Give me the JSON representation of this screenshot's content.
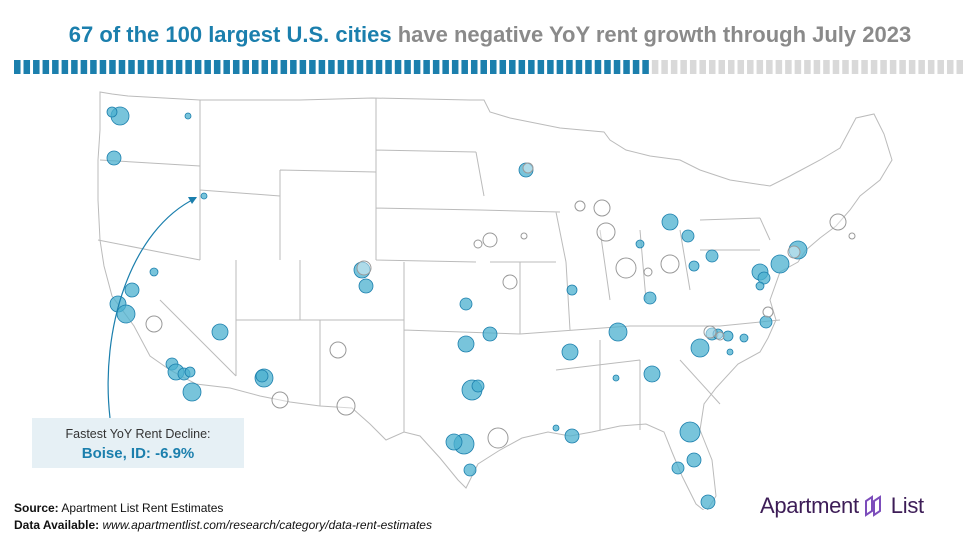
{
  "title": {
    "highlight": "67 of the 100 largest U.S. cities",
    "rest": "have negative YoY rent growth through July 2023"
  },
  "progress": {
    "filled": 67,
    "total": 100,
    "filled_color": "#1b7fad",
    "empty_color": "#d9d9d9"
  },
  "callout": {
    "line1": "Fastest YoY Rent Decline:",
    "line2": "Boise, ID: -6.9%"
  },
  "source": {
    "label": "Source:",
    "text": "Apartment List Rent Estimates",
    "data_label": "Data Available:",
    "data_url": "www.apartmentlist.com/research/category/data-rent-estimates"
  },
  "logo": {
    "left": "Apartment",
    "right": "List"
  },
  "colors": {
    "negative": "#4bb0cf",
    "negative_stroke": "#1b7fad",
    "positive_stroke": "#999999",
    "map_border": "#bbbbbb"
  }
}
